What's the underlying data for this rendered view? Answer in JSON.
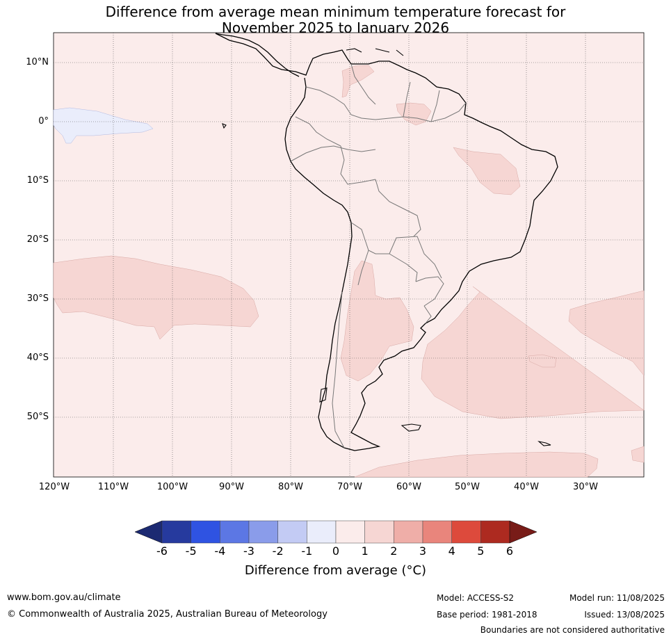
{
  "title_line1": "Difference from average mean minimum temperature forecast for",
  "title_line2": "November 2025 to January 2026",
  "lat_labels": [
    "10°N",
    "0°",
    "10°S",
    "20°S",
    "30°S",
    "40°S",
    "50°S"
  ],
  "lon_labels": [
    "120°W",
    "110°W",
    "100°W",
    "90°W",
    "80°W",
    "70°W",
    "60°W",
    "50°W",
    "40°W",
    "30°W"
  ],
  "colorbar": {
    "ticks": [
      "-6",
      "-5",
      "-4",
      "-3",
      "-2",
      "-1",
      "0",
      "1",
      "2",
      "3",
      "4",
      "5",
      "6"
    ],
    "colors": [
      "#263a9e",
      "#2f53e2",
      "#5c77e4",
      "#8a9cea",
      "#c3cbf4",
      "#eaedfb",
      "#fbeceb",
      "#f6d6d3",
      "#efaea8",
      "#e9857c",
      "#dd4a3c",
      "#ad2a20"
    ],
    "under_color": "#1c2a72",
    "over_color": "#781c18",
    "label": "Difference from average (°C)"
  },
  "map": {
    "background_anomaly_color": "#fbeceb",
    "warm_anomaly_color": "#f6d6d3",
    "cool_anomaly_color": "#eaedfb"
  },
  "footer": {
    "url": "www.bom.gov.au/climate",
    "copyright": "© Commonwealth of Australia 2025, Australian Bureau of Meteorology",
    "model": "Model: ACCESS-S2",
    "base_period": "Base period: 1981-2018",
    "model_run": "Model run: 11/08/2025",
    "issued": "Issued: 13/08/2025",
    "disclaimer": "Boundaries are not considered authoritative"
  }
}
